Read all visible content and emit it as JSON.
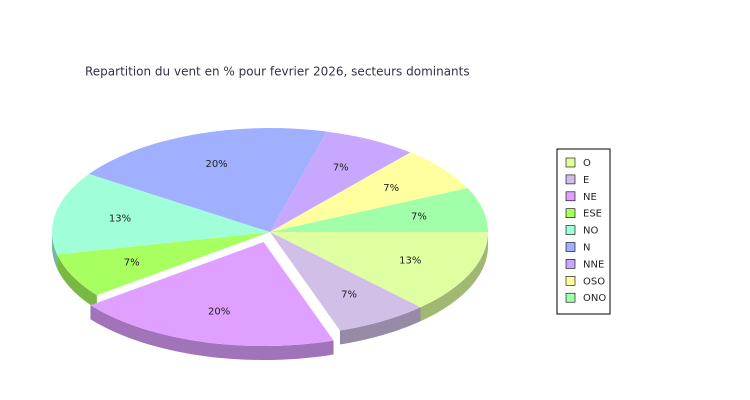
{
  "chart_data": {
    "type": "pie3d",
    "title": "Repartition du vent en % pour fevrier 2026, secteurs dominants",
    "categories": [
      "O",
      "E",
      "NE",
      "ESE",
      "NO",
      "N",
      "NNE",
      "OSO",
      "ONO"
    ],
    "values": [
      13,
      7,
      20,
      7,
      13,
      20,
      7,
      7,
      7
    ],
    "value_labels": [
      "13%",
      "7%",
      "20%",
      "7%",
      "13%",
      "20%",
      "7%",
      "7%",
      "7%"
    ],
    "colors": [
      "#e0ffa0",
      "#d0c0e8",
      "#e0a0ff",
      "#a8ff60",
      "#a0ffd8",
      "#a0b0ff",
      "#c8a8ff",
      "#ffffa0",
      "#a0ffa8"
    ],
    "exploded": [
      false,
      false,
      true,
      false,
      false,
      false,
      false,
      false,
      false
    ],
    "legend": "right"
  }
}
